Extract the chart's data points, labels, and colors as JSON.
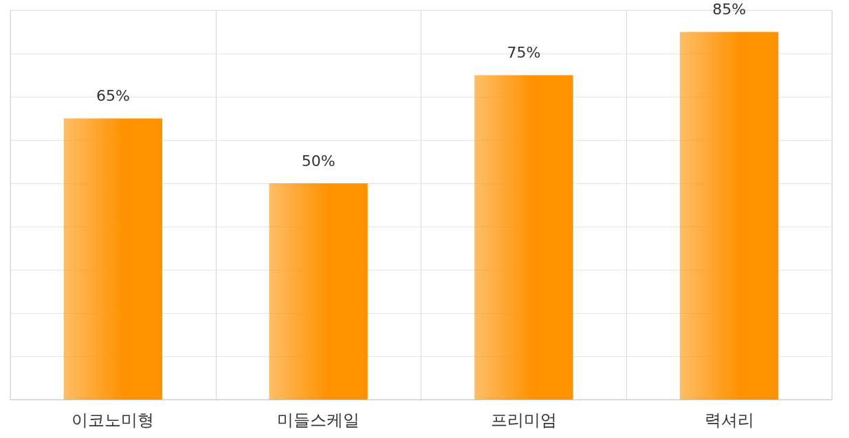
{
  "chart_data": {
    "type": "bar",
    "categories": [
      "이코노미형",
      "미들스케일",
      "프리미엄",
      "력셔리"
    ],
    "values": [
      65,
      50,
      75,
      85
    ],
    "value_labels": [
      "65%",
      "50%",
      "75%",
      "85%"
    ],
    "color": "#ff9200",
    "ylim": [
      0,
      90
    ],
    "yticks": [
      {
        "value": 0,
        "label": null
      },
      {
        "value": 10,
        "label": null
      },
      {
        "value": 20,
        "label": null
      },
      {
        "value": 30,
        "label": null
      },
      {
        "value": 40,
        "label": null
      },
      {
        "value": 50,
        "label": null
      },
      {
        "value": 60,
        "label": null
      },
      {
        "value": 70,
        "label": null
      },
      {
        "value": 80,
        "label": null
      },
      {
        "value": 90,
        "label": null
      }
    ],
    "grid": true,
    "tick_labels": "x"
  }
}
